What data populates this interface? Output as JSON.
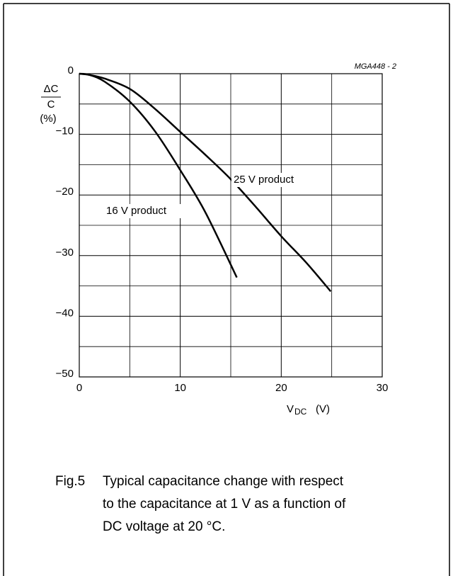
{
  "chart_data": {
    "type": "line",
    "annotation": "MGA448 - 2",
    "ylabel": {
      "numerator": "ΔC",
      "denominator": "C",
      "unit": "(%)"
    },
    "xlabel": {
      "symbol": "V",
      "subscript": "DC",
      "unit": "(V)"
    },
    "xlim": [
      0,
      30
    ],
    "ylim": [
      -50,
      0
    ],
    "xticks": [
      0,
      10,
      20,
      30
    ],
    "yticks": [
      0,
      {
        "value": -10,
        "label": "−10"
      },
      {
        "value": -20,
        "label": "−20"
      },
      {
        "value": -30,
        "label": "−30"
      },
      {
        "value": -40,
        "label": "−40"
      },
      {
        "value": -50,
        "label": "−50"
      }
    ],
    "xminor": [
      5,
      15,
      25
    ],
    "yminor": [
      -5,
      -15,
      -25,
      -35,
      -45
    ],
    "grid": true,
    "series": [
      {
        "name": "16 V product",
        "color": "#000000",
        "x": [
          0,
          1,
          2.5,
          5,
          7.5,
          10,
          12.5,
          15.6
        ],
        "values": [
          0,
          -0.2,
          -1.3,
          -4.6,
          -9.5,
          -15.9,
          -22.9,
          -33.6
        ]
      },
      {
        "name": "25 V product",
        "color": "#000000",
        "x": [
          0,
          1,
          2.5,
          5,
          7.5,
          10,
          12.5,
          15,
          17.5,
          20,
          22.5,
          24.9
        ],
        "values": [
          0,
          -0.2,
          -0.8,
          -2.5,
          -5.8,
          -9.6,
          -13.4,
          -17.4,
          -22,
          -26.8,
          -31.2,
          -35.9
        ]
      }
    ],
    "caption": {
      "label": "Fig.5",
      "lines": [
        "Typical capacitance change with respect",
        "to the capacitance at 1 V as a function of",
        "DC voltage at 20 °C."
      ]
    }
  }
}
